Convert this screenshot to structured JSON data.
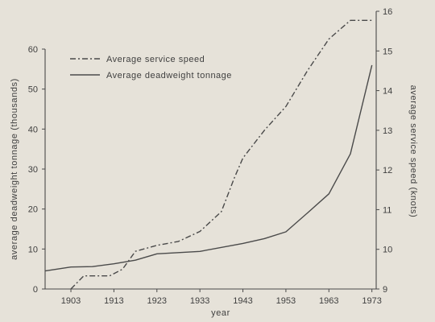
{
  "chart_data": {
    "type": "line",
    "xlabel": "year",
    "ylabel_left": "average deadweight tonnage (thousands)",
    "ylabel_right": "average service speed (knots)",
    "x_ticks": [
      "1903",
      "1913",
      "1923",
      "1933",
      "1943",
      "1953",
      "1963",
      "1973"
    ],
    "xlim": [
      1897,
      1974
    ],
    "ylim_left": [
      0,
      60
    ],
    "ylim_right": [
      9,
      16
    ],
    "yticks_left": [
      0,
      10,
      20,
      30,
      40,
      50,
      60
    ],
    "yticks_right": [
      9,
      10,
      11,
      12,
      13,
      14,
      15,
      16
    ],
    "grid": false,
    "legend_position": "top-left",
    "series": [
      {
        "name": "Average service speed",
        "axis": "right",
        "style": "dash-dot",
        "x": [
          1903,
          1906,
          1909,
          1912,
          1915,
          1918,
          1923,
          1928,
          1933,
          1938,
          1941,
          1943,
          1948,
          1953,
          1958,
          1963,
          1968,
          1973
        ],
        "y": [
          9.0,
          9.33,
          9.33,
          9.33,
          9.5,
          9.95,
          10.1,
          10.2,
          10.45,
          10.95,
          11.8,
          12.3,
          13.0,
          13.6,
          14.5,
          15.3,
          15.77,
          15.77
        ]
      },
      {
        "name": "Average deadweight tonnage",
        "axis": "left",
        "style": "solid",
        "x": [
          1897,
          1903,
          1908,
          1913,
          1918,
          1923,
          1933,
          1943,
          1948,
          1953,
          1958,
          1963,
          1968,
          1973
        ],
        "y": [
          4.5,
          5.5,
          5.6,
          6.3,
          7.2,
          8.8,
          9.4,
          11.4,
          12.6,
          14.3,
          19.0,
          23.8,
          33.8,
          56.0
        ]
      }
    ]
  }
}
